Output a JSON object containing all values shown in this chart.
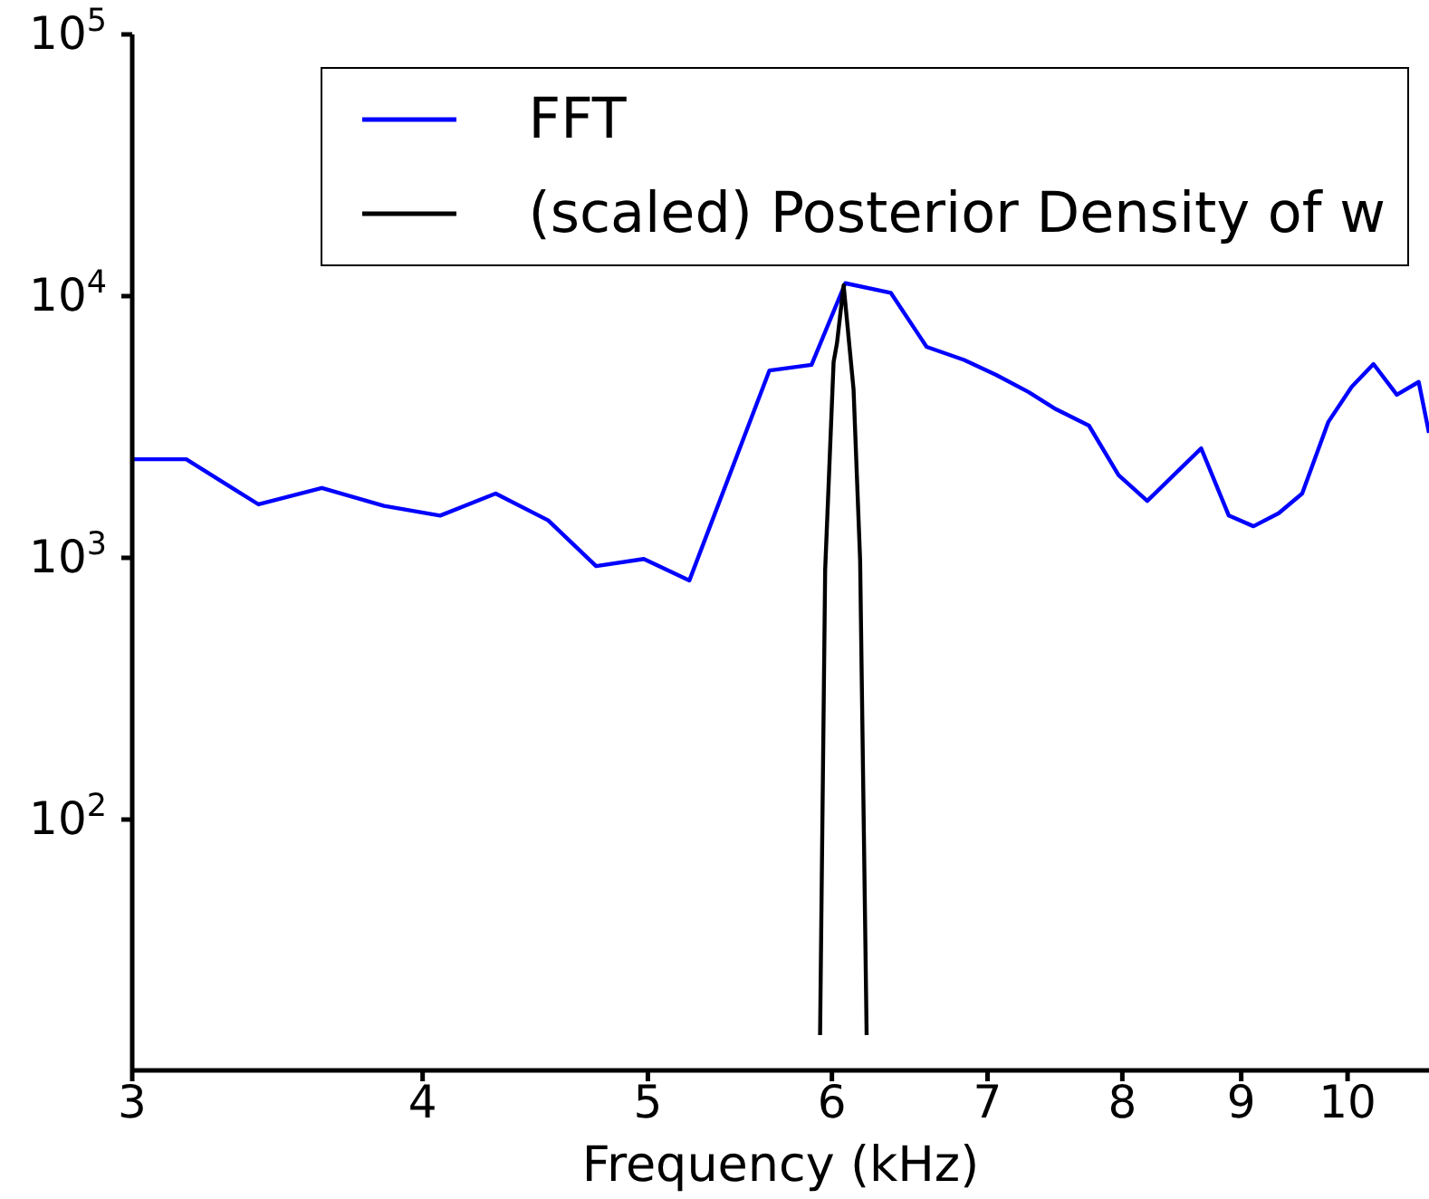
{
  "chart_data": {
    "type": "line",
    "xlabel": "Frequency (kHz)",
    "log": "xy",
    "grid": false,
    "legend": "top right",
    "marker": "none",
    "line_style": "solid",
    "xlim": [
      3,
      10.84
    ],
    "xticks": [
      3,
      4,
      5,
      6,
      7,
      8,
      9,
      10
    ],
    "ylim": [
      11,
      100000
    ],
    "yticks": [
      {
        "value": 100,
        "label": "10$^{2}$"
      },
      {
        "value": 1000,
        "label": "10$^{3}$"
      },
      {
        "value": 10000,
        "label": "10$^{4}$"
      },
      {
        "value": 100000,
        "label": "10$^{5}$"
      }
    ],
    "series": [
      {
        "name": "FFT",
        "color": "#0000ff",
        "x": [
          3,
          3.165,
          3.4,
          3.62,
          3.85,
          4.07,
          4.3,
          4.53,
          4.75,
          4.98,
          5.21,
          5.64,
          5.88,
          6.08,
          6.36,
          6.59,
          6.84,
          7.06,
          7.29,
          7.49,
          7.74,
          7.97,
          8.2,
          8.65,
          8.89,
          9.11,
          9.34,
          9.56,
          9.81,
          10.04,
          10.26,
          10.5,
          10.73,
          10.84
        ],
        "values": [
          2380,
          2380,
          1600,
          1850,
          1580,
          1450,
          1760,
          1390,
          930,
          990,
          820,
          5200,
          5460,
          11200,
          10300,
          6400,
          5700,
          5000,
          4300,
          3700,
          3200,
          2070,
          1650,
          2620,
          1450,
          1320,
          1480,
          1760,
          3300,
          4500,
          5500,
          4200,
          4700,
          3000
        ]
      },
      {
        "name": "(scaled) Posterior Density of w",
        "color": "#000000",
        "x": [
          5.93,
          5.96,
          6.01,
          6.03,
          6.07,
          6.13,
          6.17,
          6.21
        ],
        "values": [
          15,
          900,
          5600,
          6600,
          11000,
          4400,
          980,
          15
        ]
      }
    ]
  }
}
